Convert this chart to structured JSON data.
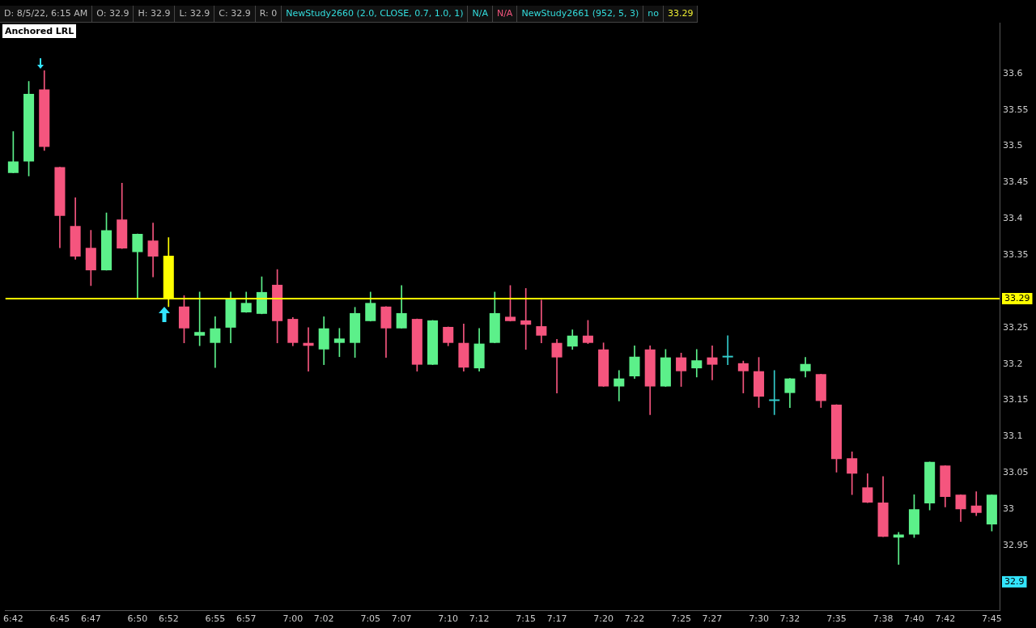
{
  "chart_data": {
    "type": "candlestick",
    "categories": [
      "6:42",
      null,
      null,
      "6:45",
      null,
      "6:47",
      null,
      null,
      "6:50",
      null,
      "6:52",
      null,
      null,
      "6:55",
      null,
      "6:57",
      null,
      null,
      "7:00",
      null,
      "7:02",
      null,
      null,
      "7:05",
      null,
      "7:07",
      null,
      null,
      "7:10",
      null,
      "7:12",
      null,
      null,
      "7:15",
      null,
      "7:17",
      null,
      null,
      "7:20",
      null,
      "7:22",
      null,
      null,
      "7:25",
      null,
      "7:27",
      null,
      null,
      "7:30",
      null,
      "7:32",
      null,
      null,
      "7:35",
      null,
      null,
      "7:38",
      null,
      "7:40",
      null,
      "7:42",
      null,
      null,
      "7:45"
    ],
    "ohlc": [
      [
        33.463,
        33.52,
        33.463,
        33.479
      ],
      [
        33.479,
        33.589,
        33.459,
        33.572
      ],
      [
        33.578,
        33.604,
        33.494,
        33.499
      ],
      [
        33.471,
        33.471,
        33.36,
        33.404
      ],
      [
        33.39,
        33.429,
        33.344,
        33.348
      ],
      [
        33.36,
        33.384,
        33.308,
        33.329
      ],
      [
        33.329,
        33.408,
        33.329,
        33.384
      ],
      [
        33.399,
        33.449,
        33.359,
        33.359
      ],
      [
        33.354,
        33.379,
        33.29,
        33.379
      ],
      [
        33.37,
        33.394,
        33.32,
        33.348
      ],
      [
        33.349,
        33.374,
        33.279,
        33.29
      ],
      [
        33.279,
        33.294,
        33.229,
        33.249
      ],
      [
        33.239,
        33.299,
        33.225,
        33.244
      ],
      [
        33.229,
        33.265,
        33.195,
        33.249
      ],
      [
        33.25,
        33.299,
        33.229,
        33.289
      ],
      [
        33.271,
        33.299,
        33.271,
        33.284
      ],
      [
        33.269,
        33.32,
        33.269,
        33.299
      ],
      [
        33.309,
        33.33,
        33.229,
        33.259
      ],
      [
        33.262,
        33.264,
        33.225,
        33.229
      ],
      [
        33.229,
        33.25,
        33.19,
        33.225
      ],
      [
        33.22,
        33.265,
        33.199,
        33.249
      ],
      [
        33.229,
        33.249,
        33.21,
        33.235
      ],
      [
        33.229,
        33.278,
        33.209,
        33.27
      ],
      [
        33.259,
        33.299,
        33.259,
        33.284
      ],
      [
        33.279,
        33.279,
        33.209,
        33.249
      ],
      [
        33.249,
        33.308,
        33.249,
        33.27
      ],
      [
        33.262,
        33.262,
        33.19,
        33.199
      ],
      [
        33.199,
        33.26,
        33.199,
        33.26
      ],
      [
        33.251,
        33.251,
        33.225,
        33.229
      ],
      [
        33.229,
        33.255,
        33.19,
        33.195
      ],
      [
        33.194,
        33.249,
        33.19,
        33.228
      ],
      [
        33.229,
        33.299,
        33.229,
        33.27
      ],
      [
        33.265,
        33.308,
        33.259,
        33.259
      ],
      [
        33.26,
        33.304,
        33.22,
        33.254
      ],
      [
        33.252,
        33.288,
        33.229,
        33.239
      ],
      [
        33.229,
        33.234,
        33.16,
        33.209
      ],
      [
        33.224,
        33.247,
        33.22,
        33.239
      ],
      [
        33.239,
        33.26,
        33.228,
        33.229
      ],
      [
        33.22,
        33.229,
        33.169,
        33.169
      ],
      [
        33.169,
        33.191,
        33.149,
        33.18
      ],
      [
        33.183,
        33.225,
        33.18,
        33.21
      ],
      [
        33.22,
        33.225,
        33.13,
        33.169
      ],
      [
        33.169,
        33.22,
        33.169,
        33.209
      ],
      [
        33.209,
        33.215,
        33.169,
        33.19
      ],
      [
        33.194,
        33.22,
        33.182,
        33.205
      ],
      [
        33.209,
        33.225,
        33.178,
        33.199
      ],
      [
        33.209,
        33.239,
        33.199,
        33.209
      ],
      [
        33.201,
        33.204,
        33.16,
        33.19
      ],
      [
        33.19,
        33.209,
        33.14,
        33.155
      ],
      [
        33.149,
        33.191,
        33.13,
        33.149
      ],
      [
        33.16,
        33.18,
        33.14,
        33.18
      ],
      [
        33.19,
        33.209,
        33.182,
        33.2
      ],
      [
        33.186,
        33.186,
        33.14,
        33.149
      ],
      [
        33.144,
        33.144,
        33.051,
        33.069
      ],
      [
        33.07,
        33.079,
        33.02,
        33.049
      ],
      [
        33.03,
        33.049,
        33.009,
        33.009
      ],
      [
        33.009,
        33.045,
        32.962,
        32.962
      ],
      [
        32.961,
        32.968,
        32.924,
        32.965
      ],
      [
        32.965,
        33.02,
        32.961,
        33.0
      ],
      [
        33.008,
        33.065,
        32.999,
        33.065
      ],
      [
        33.06,
        33.06,
        33.003,
        33.017
      ],
      [
        33.02,
        33.02,
        32.983,
        33.0
      ],
      [
        33.005,
        33.024,
        32.991,
        32.995
      ],
      [
        32.979,
        33.02,
        32.97,
        33.02
      ]
    ],
    "colors": [
      "#5cf08a",
      "#5cf08a",
      "#f5557e",
      "#f5557e",
      "#f5557e",
      "#f5557e",
      "#5cf08a",
      "#f5557e",
      "#5cf08a",
      "#f5557e",
      "#ffff00",
      "#f5557e",
      "#5cf08a",
      "#5cf08a",
      "#5cf08a",
      "#5cf08a",
      "#5cf08a",
      "#f5557e",
      "#f5557e",
      "#f5557e",
      "#5cf08a",
      "#5cf08a",
      "#5cf08a",
      "#5cf08a",
      "#f5557e",
      "#5cf08a",
      "#f5557e",
      "#5cf08a",
      "#f5557e",
      "#f5557e",
      "#5cf08a",
      "#5cf08a",
      "#f5557e",
      "#f5557e",
      "#f5557e",
      "#f5557e",
      "#5cf08a",
      "#f5557e",
      "#f5557e",
      "#5cf08a",
      "#5cf08a",
      "#f5557e",
      "#5cf08a",
      "#f5557e",
      "#5cf08a",
      "#f5557e",
      "#33cccc",
      "#f5557e",
      "#f5557e",
      "#33cccc",
      "#5cf08a",
      "#5cf08a",
      "#f5557e",
      "#f5557e",
      "#f5557e",
      "#f5557e",
      "#f5557e",
      "#5cf08a",
      "#5cf08a",
      "#5cf08a",
      "#f5557e",
      "#f5557e",
      "#f5557e",
      "#5cf08a"
    ],
    "ylim": [
      32.86,
      33.67
    ],
    "yticks": [
      32.95,
      33,
      33.05,
      33.1,
      33.15,
      33.2,
      33.25,
      33.35,
      33.4,
      33.45,
      33.5,
      33.55,
      33.6
    ],
    "grid": false,
    "legend": false,
    "ref_lines": [
      {
        "axis": "y",
        "value": 33.29,
        "label": "33.29",
        "color": "#ffff00"
      }
    ],
    "annotations": [
      "D: 8/5/22, 6:15 AM",
      "O: 32.9",
      "H: 32.9",
      "L: 32.9",
      "C: 32.9",
      "R: 0",
      "NewStudy2660 (2.0, CLOSE, 0.7, 1.0, 1)",
      "N/A",
      "N/A",
      "NewStudy2661 (952, 5, 3)",
      "no",
      "33.29",
      "Anchored LRL",
      {
        "text": "32.9",
        "y": 32.9
      }
    ]
  }
}
